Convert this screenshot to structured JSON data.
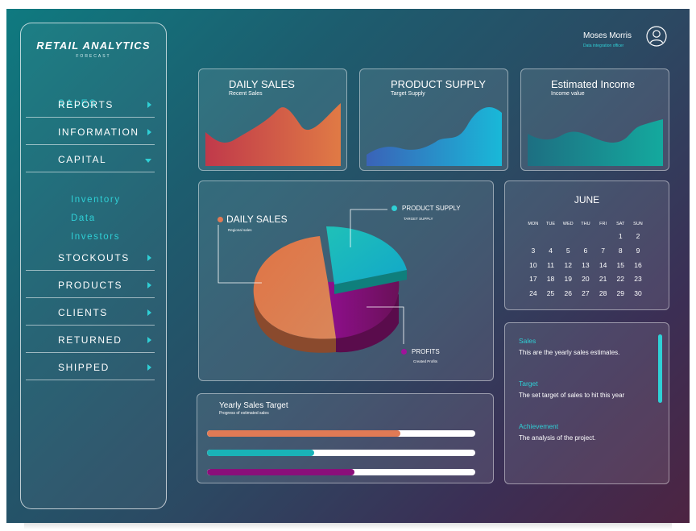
{
  "brand": {
    "title": "RETAIL ANALYTICS",
    "subtitle": "FORECAST"
  },
  "sidebar": {
    "active": "SALES",
    "items": [
      {
        "label": "REPORTS",
        "chevron": "chevron-right-icon"
      },
      {
        "label": "INFORMATION",
        "chevron": "chevron-right-icon"
      },
      {
        "label": "CAPITAL",
        "chevron": "chevron-down-icon"
      },
      {
        "label": "STOCKOUTS",
        "chevron": "chevron-right-icon"
      },
      {
        "label": "PRODUCTS",
        "chevron": "chevron-right-icon"
      },
      {
        "label": "CLIENTS",
        "chevron": "chevron-right-icon"
      },
      {
        "label": "RETURNED",
        "chevron": "chevron-right-icon"
      },
      {
        "label": "SHIPPED",
        "chevron": "chevron-right-icon"
      }
    ],
    "capital_sub": [
      "Inventory",
      "Data",
      "Investors"
    ]
  },
  "user": {
    "name": "Moses Morris",
    "role": "Data integration officer",
    "icon": "user-avatar-icon"
  },
  "cards": {
    "daily_sales": {
      "title": "DAILY SALES",
      "subtitle": "Recent Sales"
    },
    "product_supply": {
      "title": "PRODUCT SUPPLY",
      "subtitle": "Target Supply"
    },
    "estimated_income": {
      "title": "Estimated Income",
      "subtitle": "Income value"
    }
  },
  "pie": {
    "daily_sales": {
      "title": "DAILY SALES",
      "subtitle": "Regional sales"
    },
    "product_supply": {
      "title": "PRODUCT SUPPLY",
      "subtitle": "TARGET SUPPLY"
    },
    "profits": {
      "title": "PROFITS",
      "subtitle": "Created Profits"
    }
  },
  "calendar": {
    "month": "JUNE",
    "days": [
      "MON",
      "TUE",
      "WED",
      "THU",
      "FRI",
      "SAT",
      "SUN"
    ],
    "weeks": [
      [
        "",
        "",
        "",
        "",
        "",
        "1",
        "2"
      ],
      [
        "3",
        "4",
        "5",
        "6",
        "7",
        "8",
        "9"
      ],
      [
        "10",
        "11",
        "12",
        "13",
        "14",
        "15",
        "16"
      ],
      [
        "17",
        "18",
        "19",
        "20",
        "21",
        "22",
        "23"
      ],
      [
        "24",
        "25",
        "26",
        "27",
        "28",
        "29",
        "30"
      ]
    ]
  },
  "info": {
    "sales": {
      "heading": "Sales",
      "text": "This are the yearly sales estimates."
    },
    "target": {
      "heading": "Target",
      "text": "The set target of sales to hit this year"
    },
    "achievement": {
      "heading": "Achievement",
      "text": "The analysis of the project."
    }
  },
  "yearly": {
    "title": "Yearly Sales Target",
    "subtitle": "Progress of estimated sales",
    "bars": [
      {
        "progress": 0.72,
        "color": "#e07a55"
      },
      {
        "progress": 0.4,
        "color": "#19b3b8"
      },
      {
        "progress": 0.55,
        "color": "#8a0f7a"
      }
    ]
  },
  "colors": {
    "accent": "#2fd0d6",
    "orange": "#e07a55",
    "teal": "#19b3b8",
    "purple": "#8a0f7a"
  }
}
